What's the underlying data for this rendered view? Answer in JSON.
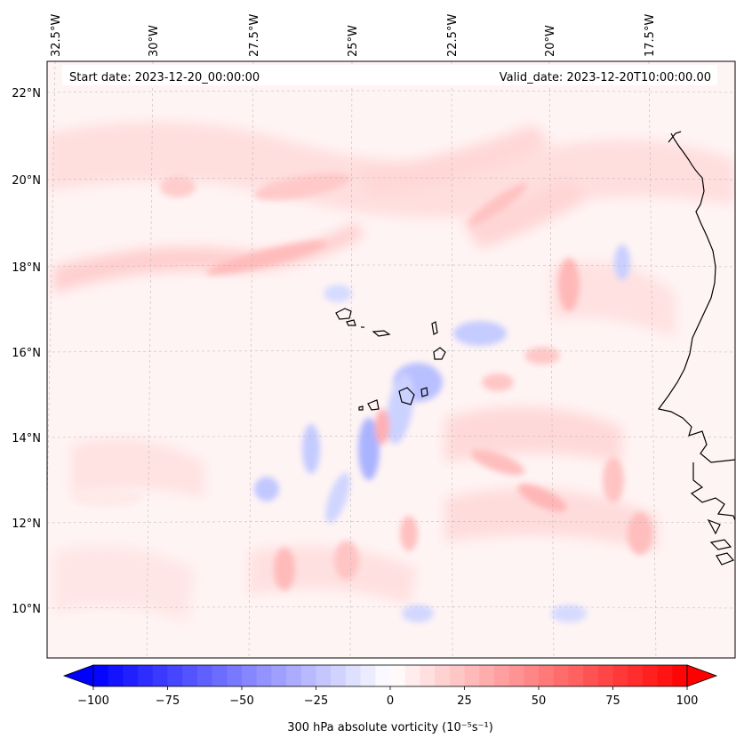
{
  "map": {
    "start_label": "Start date: 2023-12-20_00:00:00",
    "valid_label": "Valid_date: 2023-12-20T10:00:00.00",
    "lon_ticks": [
      "32.5°W",
      "30°W",
      "27.5°W",
      "25°W",
      "22.5°W",
      "20°W",
      "17.5°W"
    ],
    "lat_ticks": [
      "22°N",
      "20°N",
      "18°N",
      "16°N",
      "14°N",
      "12°N",
      "10°N"
    ],
    "lon_tick_values": [
      -32.5,
      -30,
      -27.5,
      -25,
      -22.5,
      -20,
      -17.5
    ],
    "lat_tick_values": [
      22,
      20,
      18,
      16,
      14,
      12,
      10
    ],
    "colors": {
      "min": "#0000ff",
      "mid": "#ffffff",
      "max": "#ff0000",
      "coastline": "#000000",
      "gridline": "#b0b0b0"
    }
  },
  "colorbar": {
    "label": "300 hPa absolute vorticity (10⁻⁵s⁻¹)",
    "ticks": [
      "−100",
      "−75",
      "−50",
      "−25",
      "0",
      "25",
      "50",
      "75",
      "100"
    ],
    "tick_values": [
      -100,
      -75,
      -50,
      -25,
      0,
      25,
      50,
      75,
      100
    ],
    "range": [
      -100,
      100
    ],
    "levels": 40
  }
}
